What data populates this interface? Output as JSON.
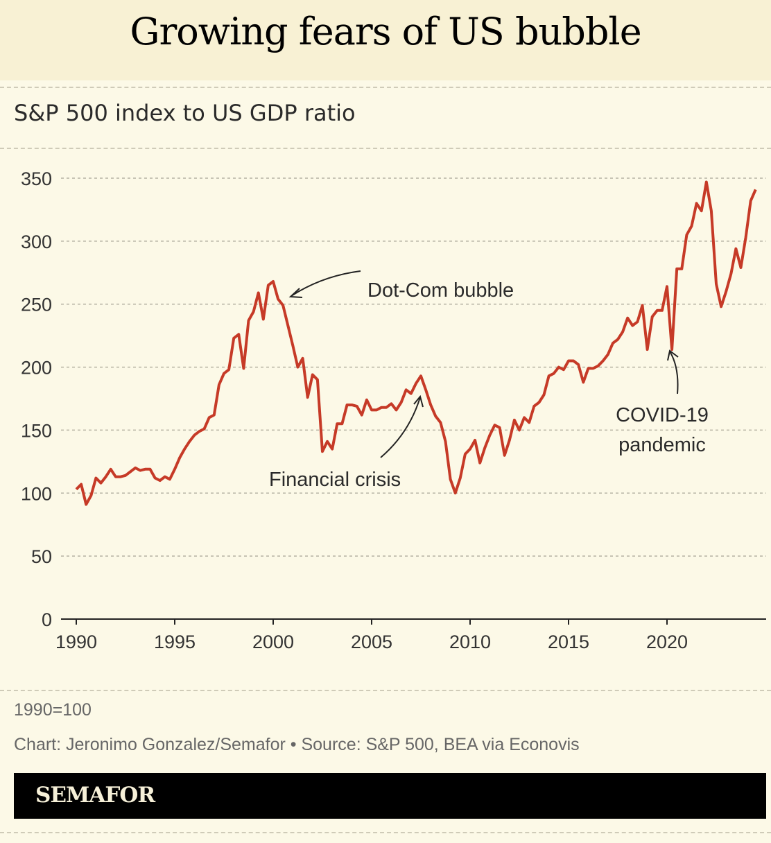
{
  "title": "Growing fears of US bubble",
  "chart_data": {
    "type": "line",
    "title": "S&P 500 index to US GDP ratio",
    "xlabel": "",
    "ylabel": "",
    "xlim": [
      1990,
      2024.5
    ],
    "ylim": [
      0,
      350
    ],
    "x_ticks": [
      "1990",
      "1995",
      "2000",
      "2005",
      "2010",
      "2015",
      "2020"
    ],
    "y_ticks": [
      "0",
      "50",
      "100",
      "150",
      "200",
      "250",
      "300",
      "350"
    ],
    "grid": true,
    "series": [
      {
        "name": "S&P 500 / GDP",
        "color": "#c63a27",
        "x_start": 1990,
        "x_step": 0.25,
        "values": [
          103,
          107,
          91,
          98,
          112,
          108,
          113,
          119,
          113,
          113,
          114,
          117,
          120,
          118,
          119,
          119,
          112,
          110,
          113,
          111,
          119,
          128,
          135,
          141,
          146,
          149,
          151,
          160,
          162,
          186,
          195,
          198,
          223,
          226,
          199,
          237,
          244,
          259,
          238,
          265,
          268,
          254,
          249,
          233,
          217,
          200,
          207,
          176,
          194,
          190,
          133,
          141,
          135,
          155,
          155,
          170,
          170,
          169,
          162,
          174,
          166,
          166,
          168,
          168,
          171,
          166,
          172,
          182,
          179,
          187,
          193,
          182,
          170,
          161,
          156,
          141,
          111,
          100,
          112,
          131,
          135,
          142,
          124,
          136,
          146,
          154,
          152,
          130,
          142,
          158,
          150,
          160,
          156,
          169,
          172,
          178,
          193,
          195,
          200,
          198,
          205,
          205,
          202,
          188,
          199,
          199,
          201,
          205,
          210,
          219,
          222,
          228,
          239,
          233,
          236,
          249,
          214,
          240,
          245,
          245,
          264,
          214,
          278,
          278,
          305,
          312,
          330,
          324,
          347,
          324,
          266,
          248,
          260,
          274,
          294,
          279,
          303,
          332,
          341
        ]
      }
    ],
    "annotations": [
      {
        "text": "Dot-Com bubble",
        "x": 2000,
        "y": 268
      },
      {
        "text": "Financial crisis",
        "x": 2007.4,
        "y": 193
      },
      {
        "lines": [
          "COVID-19",
          "pandemic"
        ],
        "x": 2020.1,
        "y": 214
      }
    ]
  },
  "footer": {
    "note": "1990=100",
    "credit": "Chart: Jeronimo Gonzalez/Semafor • Source: S&P 500, BEA via Econovis",
    "logo": "SEMAFOR"
  }
}
